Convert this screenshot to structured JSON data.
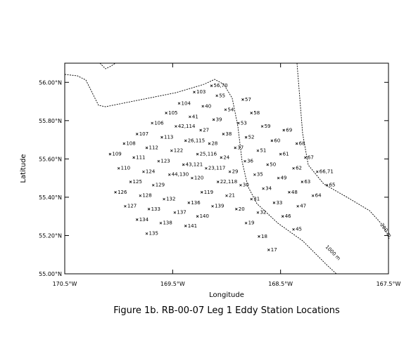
{
  "chart_data": {
    "type": "scatter",
    "title": "Figure 1b. RB-00-07 Leg 1 Eddy Station Locations",
    "xlabel": "Longitude",
    "ylabel": "Latitude",
    "xlim": [
      -170.5,
      -167.5
    ],
    "ylim": [
      55.0,
      56.1
    ],
    "xticks": [
      {
        "value": -170.5,
        "label": "170.5°W"
      },
      {
        "value": -169.5,
        "label": "169.5°W"
      },
      {
        "value": -168.5,
        "label": "168.5°W"
      },
      {
        "value": -167.5,
        "label": "167.5°W"
      }
    ],
    "yticks": [
      {
        "value": 55.0,
        "label": "55.00°N"
      },
      {
        "value": 55.2,
        "label": "55.20°N"
      },
      {
        "value": 55.4,
        "label": "55.40°N"
      },
      {
        "value": 55.6,
        "label": "55.60°N"
      },
      {
        "value": 55.8,
        "label": "55.80°N"
      },
      {
        "value": 56.0,
        "label": "56.00°N"
      }
    ],
    "annotations": [
      "200 m",
      "1000 m"
    ],
    "series": [
      {
        "labels": [
          "56,70",
          "103",
          "55",
          "57",
          "104",
          "40",
          "54",
          "105",
          "41",
          "58",
          "39",
          "53",
          "106",
          "42,114",
          "27",
          "59",
          "69",
          "107",
          "38",
          "113",
          "26,115",
          "52",
          "60",
          "108",
          "68",
          "28",
          "112",
          "37",
          "122",
          "51",
          "25,116",
          "61",
          "109",
          "24",
          "67",
          "111",
          "123",
          "36",
          "43,121",
          "50",
          "23,117",
          "110",
          "62",
          "124",
          "29",
          "66,71",
          "44,130",
          "35",
          "120",
          "49",
          "22,118",
          "125",
          "63",
          "129",
          "30",
          "65",
          "34",
          "119",
          "126",
          "48",
          "21",
          "64",
          "128",
          "132",
          "31",
          "136",
          "33",
          "127",
          "47",
          "139",
          "133",
          "20",
          "137",
          "32",
          "140",
          "46",
          "134",
          "138",
          "19",
          "141",
          "45",
          "135",
          "18",
          "17"
        ],
        "x": [
          -169.14,
          -169.3,
          -169.09,
          -168.85,
          -169.44,
          -169.22,
          -169.01,
          -169.56,
          -169.34,
          -168.77,
          -169.12,
          -168.89,
          -169.69,
          -169.47,
          -169.24,
          -168.67,
          -168.47,
          -169.83,
          -169.03,
          -169.6,
          -169.38,
          -168.82,
          -168.58,
          -169.95,
          -168.35,
          -169.16,
          -169.74,
          -168.92,
          -169.51,
          -168.71,
          -169.27,
          -168.5,
          -170.08,
          -169.05,
          -168.27,
          -169.86,
          -169.63,
          -168.83,
          -169.4,
          -168.62,
          -169.19,
          -170.0,
          -168.38,
          -169.77,
          -168.97,
          -168.16,
          -169.53,
          -168.74,
          -169.32,
          -168.52,
          -169.08,
          -169.89,
          -168.3,
          -169.68,
          -168.87,
          -168.07,
          -168.66,
          -169.23,
          -170.03,
          -168.42,
          -169.0,
          -168.2,
          -169.8,
          -169.58,
          -168.77,
          -169.35,
          -168.56,
          -169.94,
          -168.34,
          -169.13,
          -169.72,
          -168.91,
          -169.48,
          -168.71,
          -169.27,
          -168.48,
          -169.83,
          -169.61,
          -168.82,
          -169.38,
          -168.38,
          -169.74,
          -168.7,
          -168.61
        ],
        "y": [
          55.982,
          55.949,
          55.93,
          55.91,
          55.89,
          55.875,
          55.857,
          55.84,
          55.82,
          55.84,
          55.805,
          55.787,
          55.787,
          55.77,
          55.75,
          55.77,
          55.75,
          55.73,
          55.73,
          55.713,
          55.695,
          55.713,
          55.695,
          55.68,
          55.68,
          55.68,
          55.658,
          55.658,
          55.643,
          55.643,
          55.625,
          55.625,
          55.625,
          55.607,
          55.607,
          55.607,
          55.588,
          55.588,
          55.57,
          55.57,
          55.551,
          55.551,
          55.551,
          55.533,
          55.533,
          55.533,
          55.518,
          55.518,
          55.5,
          55.5,
          55.48,
          55.48,
          55.48,
          55.463,
          55.463,
          55.463,
          55.445,
          55.426,
          55.426,
          55.426,
          55.408,
          55.408,
          55.408,
          55.39,
          55.39,
          55.371,
          55.371,
          55.353,
          55.353,
          55.353,
          55.338,
          55.338,
          55.32,
          55.32,
          55.3,
          55.3,
          55.283,
          55.265,
          55.265,
          55.25,
          55.232,
          55.21,
          55.195,
          55.125
        ]
      }
    ]
  }
}
